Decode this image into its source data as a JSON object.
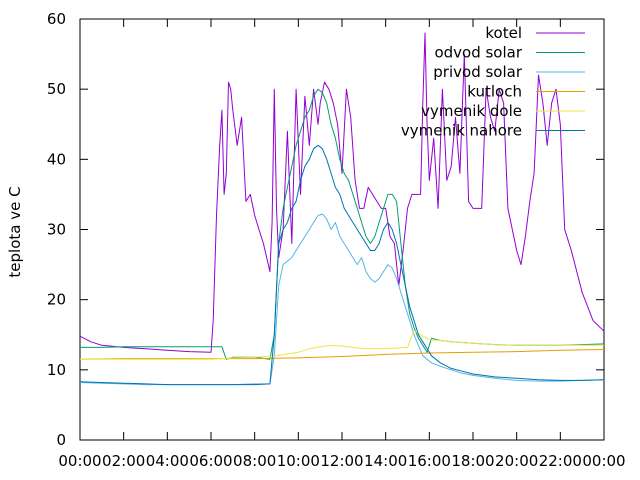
{
  "chart_data": {
    "type": "line",
    "title": "",
    "xlabel": "",
    "ylabel": "teplota ve C",
    "xlim": [
      0,
      24
    ],
    "ylim": [
      0,
      60
    ],
    "x_ticks": [
      "00:00",
      "02:00",
      "04:00",
      "06:00",
      "08:00",
      "10:00",
      "12:00",
      "14:00",
      "16:00",
      "18:00",
      "20:00",
      "22:00",
      "00:00"
    ],
    "y_ticks": [
      0,
      10,
      20,
      30,
      40,
      50,
      60
    ],
    "grid": false,
    "legend_position": "top-right",
    "series": [
      {
        "name": "kotel",
        "color": "#9400d3",
        "x": [
          0,
          0.5,
          1,
          2,
          3,
          4,
          5,
          6,
          6.1,
          6.25,
          6.4,
          6.5,
          6.6,
          6.7,
          6.8,
          6.9,
          7.0,
          7.2,
          7.4,
          7.6,
          7.8,
          8.0,
          8.2,
          8.4,
          8.55,
          8.7,
          8.8,
          8.9,
          9.0,
          9.1,
          9.3,
          9.5,
          9.7,
          9.9,
          10.1,
          10.3,
          10.5,
          10.7,
          10.9,
          11.0,
          11.2,
          11.4,
          11.6,
          11.8,
          12.0,
          12.2,
          12.4,
          12.6,
          12.8,
          13.0,
          13.2,
          13.4,
          13.6,
          13.8,
          14.0,
          14.2,
          14.4,
          14.6,
          14.8,
          15.0,
          15.2,
          15.4,
          15.6,
          15.7,
          15.8,
          15.9,
          16.0,
          16.2,
          16.4,
          16.6,
          16.8,
          17.0,
          17.2,
          17.4,
          17.6,
          17.8,
          18.0,
          18.2,
          18.4,
          18.6,
          18.8,
          19.0,
          19.2,
          19.4,
          19.6,
          19.8,
          20.0,
          20.2,
          20.4,
          20.6,
          20.8,
          21.0,
          21.2,
          21.4,
          21.6,
          21.8,
          22.0,
          22.2,
          22.5,
          23.0,
          23.5,
          24.0
        ],
        "y": [
          14.8,
          14,
          13.5,
          13.2,
          13,
          12.8,
          12.6,
          12.5,
          17,
          32,
          42,
          47,
          35,
          38,
          51,
          50,
          47,
          42,
          46,
          34,
          35,
          32,
          30,
          28,
          26,
          24,
          31,
          50,
          33,
          26,
          30,
          44,
          28,
          50,
          35,
          49,
          42,
          50,
          45,
          48,
          51,
          50,
          48,
          45,
          38,
          50,
          46,
          37,
          33,
          33,
          36,
          35,
          34,
          33,
          33,
          29,
          28,
          22,
          27,
          33,
          35,
          35,
          35,
          48,
          58,
          45,
          37,
          43,
          33,
          50,
          37,
          39,
          46,
          38,
          55,
          34,
          33,
          33,
          33,
          50,
          46,
          44,
          50,
          48,
          33,
          30,
          27,
          25,
          29,
          34,
          38,
          52,
          48,
          42,
          48,
          50,
          45,
          30,
          27,
          21,
          17,
          15.5
        ]
      },
      {
        "name": "odvod solar",
        "color": "#009e73",
        "x": [
          0,
          1,
          2,
          3,
          4,
          5,
          6,
          6.5,
          6.7,
          7,
          8,
          8.7,
          8.9,
          9.1,
          9.3,
          9.5,
          9.7,
          9.9,
          10.1,
          10.3,
          10.5,
          10.7,
          10.9,
          11.1,
          11.3,
          11.5,
          11.7,
          11.9,
          12.1,
          12.3,
          12.5,
          12.7,
          12.9,
          13.1,
          13.3,
          13.5,
          13.7,
          13.9,
          14.1,
          14.3,
          14.5,
          14.7,
          14.9,
          15.1,
          15.3,
          15.5,
          15.7,
          15.9,
          16.1,
          16.5,
          17,
          18,
          19,
          20,
          21,
          22,
          23,
          24
        ],
        "y": [
          13.2,
          13.2,
          13.3,
          13.3,
          13.3,
          13.3,
          13.3,
          13.3,
          11.5,
          11.8,
          11.8,
          11.5,
          15,
          28,
          33,
          36,
          39,
          42,
          44,
          46,
          47,
          49,
          50,
          49.5,
          48,
          45,
          43,
          40,
          38,
          37,
          35,
          33,
          31,
          29,
          28,
          29,
          31,
          33,
          35,
          35,
          34,
          28,
          22,
          18,
          16,
          14.5,
          13.5,
          12.5,
          14.5,
          14.2,
          14,
          13.8,
          13.6,
          13.5,
          13.5,
          13.5,
          13.6,
          13.7
        ]
      },
      {
        "name": "privod solar",
        "color": "#56b4e9",
        "x": [
          0,
          1,
          2,
          3,
          4,
          5,
          6,
          7,
          8,
          8.7,
          8.9,
          9.1,
          9.3,
          9.5,
          9.7,
          9.9,
          10.1,
          10.3,
          10.5,
          10.7,
          10.9,
          11.1,
          11.3,
          11.5,
          11.7,
          11.9,
          12.1,
          12.3,
          12.5,
          12.7,
          12.9,
          13.1,
          13.3,
          13.5,
          13.7,
          13.9,
          14.1,
          14.3,
          14.5,
          14.7,
          14.9,
          15.1,
          15.3,
          15.5,
          15.7,
          15.9,
          16.1,
          16.5,
          17,
          17.5,
          18,
          19,
          20,
          21,
          22,
          23,
          24
        ],
        "y": [
          8.2,
          8.1,
          8.0,
          7.9,
          7.9,
          7.9,
          7.9,
          7.9,
          8.0,
          8.0,
          12,
          22,
          25,
          25.5,
          26,
          27,
          28,
          29,
          30,
          31,
          32,
          32.2,
          31.5,
          30,
          31,
          29,
          28,
          27,
          26,
          25,
          26,
          24,
          23,
          22.5,
          23,
          24,
          25,
          24.5,
          23,
          21,
          19,
          17,
          15,
          13.5,
          12,
          11.5,
          11,
          10.5,
          10,
          9.5,
          9.2,
          8.8,
          8.5,
          8.4,
          8.4,
          8.5,
          8.6
        ]
      },
      {
        "name": "kutloch",
        "color": "#e69f00",
        "x": [
          0,
          2,
          4,
          6,
          8,
          10,
          12,
          14,
          16,
          18,
          20,
          22,
          24
        ],
        "y": [
          11.5,
          11.6,
          11.6,
          11.6,
          11.6,
          11.7,
          11.9,
          12.2,
          12.4,
          12.5,
          12.6,
          12.8,
          12.9
        ]
      },
      {
        "name": "vymenik dole",
        "color": "#f0e442",
        "x": [
          0,
          2,
          4,
          6,
          6.5,
          7,
          8,
          9,
          10,
          10.5,
          11,
          11.5,
          12,
          12.5,
          13,
          14,
          15,
          15.3,
          15.6,
          16,
          16.5,
          17,
          18,
          19,
          20,
          21,
          22,
          23,
          24
        ],
        "y": [
          11.5,
          11.5,
          11.5,
          11.5,
          11.6,
          11.7,
          11.8,
          12.0,
          12.5,
          13,
          13.3,
          13.5,
          13.4,
          13.2,
          13.0,
          13.0,
          13.2,
          15.6,
          15.0,
          14.3,
          14.2,
          14.0,
          13.8,
          13.6,
          13.5,
          13.5,
          13.5,
          13.5,
          13.5
        ]
      },
      {
        "name": "vymenik nahore",
        "color": "#0072b2",
        "x": [
          0,
          1,
          2,
          3,
          4,
          5,
          6,
          7,
          8,
          8.7,
          8.9,
          9.1,
          9.3,
          9.5,
          9.7,
          9.9,
          10.1,
          10.3,
          10.5,
          10.7,
          10.9,
          11.1,
          11.3,
          11.5,
          11.7,
          11.9,
          12.1,
          12.3,
          12.5,
          12.7,
          12.9,
          13.1,
          13.3,
          13.5,
          13.7,
          13.9,
          14.1,
          14.3,
          14.5,
          14.7,
          14.9,
          15.1,
          15.3,
          15.5,
          15.7,
          15.9,
          16.1,
          16.5,
          17,
          17.5,
          18,
          19,
          20,
          21,
          22,
          23,
          24
        ],
        "y": [
          8.3,
          8.2,
          8.1,
          8.0,
          7.9,
          7.9,
          7.9,
          7.9,
          7.9,
          8.0,
          15,
          28,
          30,
          31,
          33,
          34,
          37,
          39,
          40,
          41.5,
          42,
          41.5,
          40,
          38,
          36,
          35,
          33,
          32,
          31,
          30,
          29,
          28,
          27,
          27,
          28,
          30,
          31,
          30,
          28,
          25,
          22,
          19,
          17,
          15,
          14,
          13,
          12,
          11,
          10.2,
          9.8,
          9.4,
          9.0,
          8.8,
          8.6,
          8.5,
          8.5,
          8.6
        ]
      }
    ]
  }
}
